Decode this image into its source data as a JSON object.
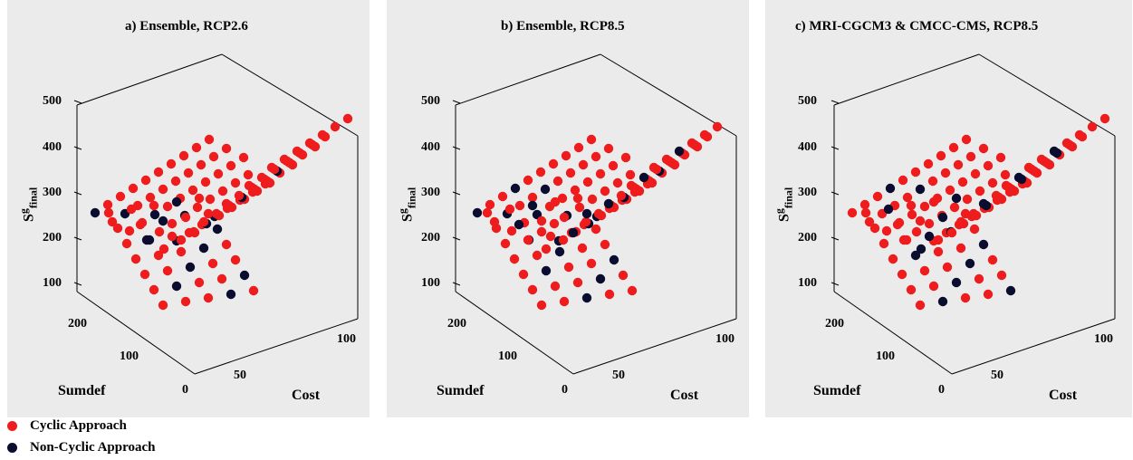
{
  "colors": {
    "cyclic": "#ee1c1c",
    "noncyclic": "#0a0d30",
    "panel_bg": "#ebebeb",
    "axis": "#000000"
  },
  "legend": {
    "cyclic": {
      "label": "Cyclic Approach",
      "color": "#ee1c1c"
    },
    "noncyclic": {
      "label": "Non-Cyclic Approach",
      "color": "#0a0d30"
    }
  },
  "chart_data": [
    {
      "type": "scatter",
      "title": "a)  Ensemble, RCP2.6",
      "xlabel": "Cost",
      "ylabel": "Sumdef",
      "zlabel": "S",
      "zlabel_sup": "g",
      "zlabel_sub": "final",
      "x_ticks": [
        "50",
        "100"
      ],
      "y_ticks": [
        "0",
        "100",
        "200"
      ],
      "z_ticks": [
        "100",
        "200",
        "300",
        "400",
        "500"
      ],
      "series": [
        {
          "name": "Cyclic Approach",
          "noncyclic_fraction": 0.15
        },
        {
          "name": "Non-Cyclic Approach",
          "noncyclic_fraction": 0.15
        }
      ],
      "variant": 0
    },
    {
      "type": "scatter",
      "title": "b)  Ensemble, RCP8.5",
      "xlabel": "Cost",
      "ylabel": "Sumdef",
      "zlabel": "S",
      "zlabel_sup": "g",
      "zlabel_sub": "final",
      "x_ticks": [
        "50",
        "100"
      ],
      "y_ticks": [
        "0",
        "100",
        "200"
      ],
      "z_ticks": [
        "100",
        "200",
        "300",
        "400",
        "500"
      ],
      "series": [
        {
          "name": "Cyclic Approach",
          "noncyclic_fraction": 0.3
        },
        {
          "name": "Non-Cyclic Approach",
          "noncyclic_fraction": 0.3
        }
      ],
      "variant": 1
    },
    {
      "type": "scatter",
      "title": "c)  MRI-CGCM3 & CMCC-CMS, RCP8.5",
      "xlabel": "Cost",
      "ylabel": "Sumdef",
      "zlabel": "S",
      "zlabel_sup": "g",
      "zlabel_sub": "final",
      "x_ticks": [
        "50",
        "100"
      ],
      "y_ticks": [
        "0",
        "100",
        "200"
      ],
      "z_ticks": [
        "100",
        "200",
        "300",
        "400",
        "500"
      ],
      "series": [
        {
          "name": "Cyclic Approach",
          "noncyclic_fraction": 0.2
        },
        {
          "name": "Non-Cyclic Approach",
          "noncyclic_fraction": 0.2
        }
      ],
      "variant": 2
    }
  ]
}
